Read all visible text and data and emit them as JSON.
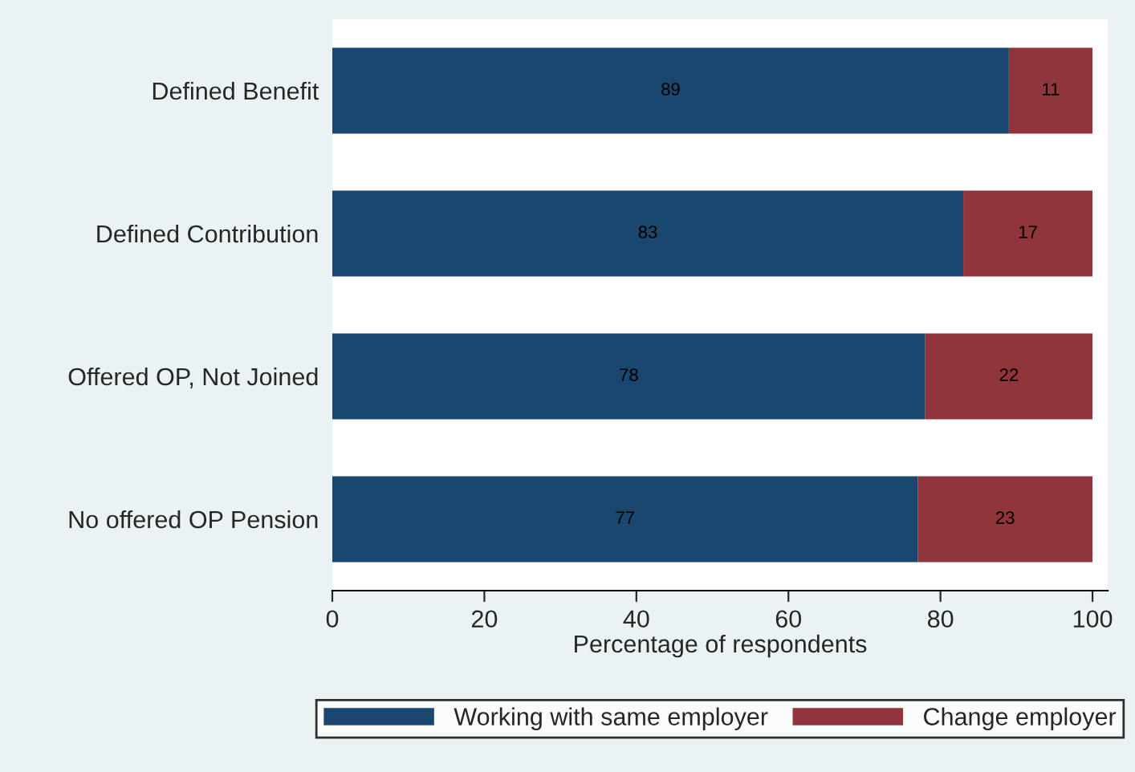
{
  "chart_data": {
    "type": "bar",
    "orientation": "horizontal",
    "stacked": true,
    "categories": [
      "Defined Benefit",
      "Defined Contribution",
      "Offered OP, Not Joined",
      "No offered OP Pension"
    ],
    "series": [
      {
        "name": "Working with same employer",
        "color": "#1a476f",
        "values": [
          89,
          83,
          78,
          77
        ]
      },
      {
        "name": "Change employer",
        "color": "#90353b",
        "values": [
          11,
          17,
          22,
          23
        ]
      }
    ],
    "xlabel": "Percentage of respondents",
    "xlim": [
      0,
      102
    ],
    "xticks": [
      0,
      20,
      40,
      60,
      80,
      100
    ],
    "data_labels": true,
    "grid": false,
    "legend": "bottom"
  }
}
